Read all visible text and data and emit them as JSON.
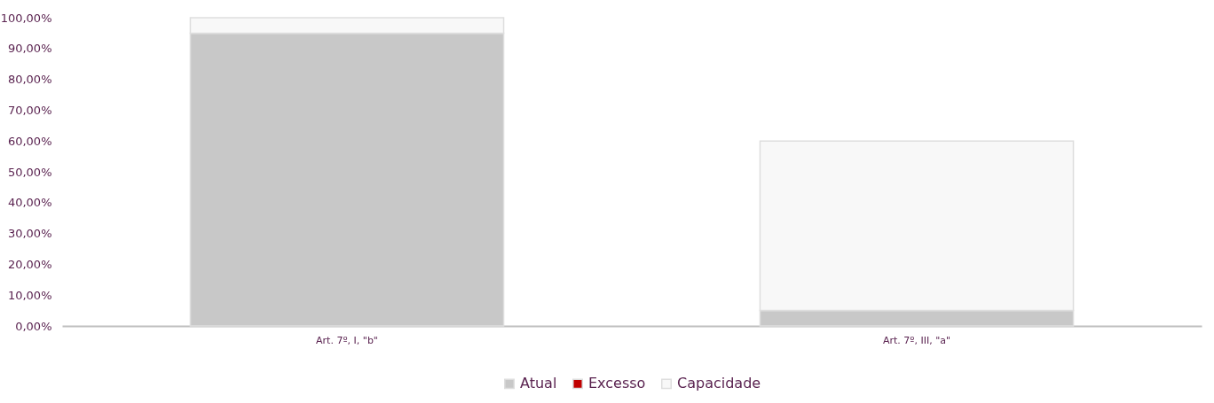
{
  "chart_data": {
    "type": "bar",
    "stacked": true,
    "categories": [
      "Art. 7º, I, \"b\"",
      "Art. 7º, III, \"a\""
    ],
    "series": [
      {
        "name": "Atual",
        "color": "#c8c8c8",
        "values": [
          95,
          5
        ]
      },
      {
        "name": "Excesso",
        "color": "#c00000",
        "values": [
          0,
          0
        ]
      },
      {
        "name": "Capacidade",
        "color": "#f8f8f8",
        "values": [
          5,
          55
        ]
      }
    ],
    "ylim": [
      0,
      100
    ],
    "yticks": [
      {
        "value": 0,
        "label": "0,00%"
      },
      {
        "value": 10,
        "label": "10,00%"
      },
      {
        "value": 20,
        "label": "20,00%"
      },
      {
        "value": 30,
        "label": "30,00%"
      },
      {
        "value": 40,
        "label": "40,00%"
      },
      {
        "value": 50,
        "label": "50,00%"
      },
      {
        "value": 60,
        "label": "60,00%"
      },
      {
        "value": 70,
        "label": "70,00%"
      },
      {
        "value": 80,
        "label": "80,00%"
      },
      {
        "value": 90,
        "label": "90,00%"
      },
      {
        "value": 100,
        "label": "100,00%"
      }
    ],
    "grid": false,
    "legend": "bottom"
  }
}
